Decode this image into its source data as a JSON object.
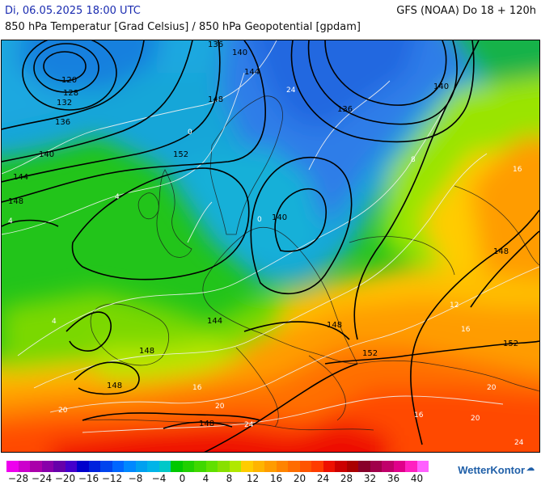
{
  "header": {
    "datetime": "Di, 06.05.2025 18:00 UTC",
    "model": "GFS (NOAA) Do 18 + 120h",
    "parameter": "850 hPa Temperatur [Grad Celsius] / 850 hPa Geopotential [gpdam]"
  },
  "map": {
    "geopotential_labels": [
      "120",
      "128",
      "132",
      "136",
      "140",
      "144",
      "148",
      "152"
    ],
    "temperature_labels": [
      "-4",
      "0",
      "4",
      "8",
      "12",
      "16",
      "20",
      "24"
    ],
    "geopotential_label_list": [
      {
        "id": "g120",
        "text": "120"
      },
      {
        "id": "g128",
        "text": "128"
      },
      {
        "id": "g132",
        "text": "132"
      },
      {
        "id": "g136a",
        "text": "136"
      },
      {
        "id": "g136b",
        "text": "136"
      },
      {
        "id": "g136c",
        "text": "136"
      },
      {
        "id": "g140a",
        "text": "140"
      },
      {
        "id": "g140b",
        "text": "140"
      },
      {
        "id": "g140c",
        "text": "140"
      },
      {
        "id": "g140d",
        "text": "140"
      },
      {
        "id": "g144a",
        "text": "144"
      },
      {
        "id": "g144b",
        "text": "144"
      },
      {
        "id": "g144c",
        "text": "144"
      },
      {
        "id": "g148a",
        "text": "148"
      },
      {
        "id": "g148b",
        "text": "148"
      },
      {
        "id": "g148c",
        "text": "148"
      },
      {
        "id": "g148d",
        "text": "148"
      },
      {
        "id": "g148e",
        "text": "148"
      },
      {
        "id": "g148f",
        "text": "148"
      },
      {
        "id": "g152a",
        "text": "152"
      },
      {
        "id": "g152b",
        "text": "152"
      },
      {
        "id": "g152c",
        "text": "152"
      }
    ]
  },
  "legend": {
    "colors": [
      "#ee00ee",
      "#cc00cc",
      "#aa00aa",
      "#8800aa",
      "#6600aa",
      "#4400cc",
      "#0000cc",
      "#0022dd",
      "#0044ee",
      "#0066ff",
      "#0088ff",
      "#00a0f0",
      "#00b4e8",
      "#00c8c8",
      "#00c800",
      "#20d000",
      "#40d800",
      "#60e000",
      "#88e000",
      "#b0e800",
      "#ffcc00",
      "#ffb400",
      "#ff9c00",
      "#ff8400",
      "#ff6c00",
      "#ff5400",
      "#ff3c00",
      "#ee1000",
      "#cc0000",
      "#aa0000",
      "#88002a",
      "#a0004a",
      "#c0006a",
      "#e0008a",
      "#ff20c0",
      "#ff60ff"
    ],
    "ticks": [
      "−28",
      "−24",
      "−20",
      "−16",
      "−12",
      "−8",
      "−4",
      "0",
      "4",
      "8",
      "12",
      "16",
      "20",
      "24",
      "28",
      "32",
      "36",
      "40"
    ]
  },
  "brand": {
    "name": "WetterKontor"
  }
}
